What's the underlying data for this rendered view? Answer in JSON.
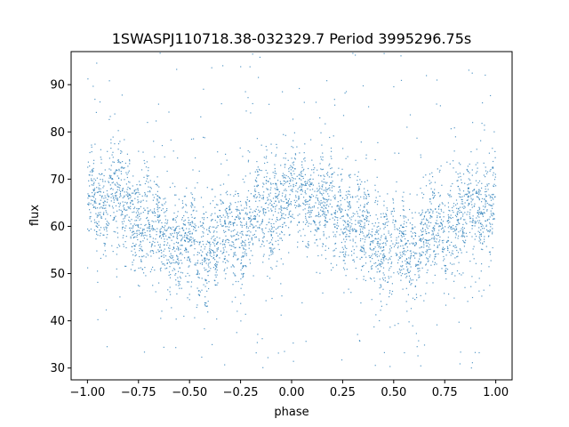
{
  "chart_data": {
    "type": "scatter",
    "title": "1SWASPJ110718.38-032329.7 Period 3995296.75s",
    "xlabel": "phase",
    "ylabel": "flux",
    "xlim": [
      -1.08,
      1.08
    ],
    "ylim": [
      27.5,
      97.0
    ],
    "xticks": [
      -1.0,
      -0.75,
      -0.5,
      -0.25,
      0.0,
      0.25,
      0.5,
      0.75,
      1.0
    ],
    "xtick_labels": [
      "−1.00",
      "−0.75",
      "−0.50",
      "−0.25",
      "0.00",
      "0.25",
      "0.50",
      "0.75",
      "1.00"
    ],
    "yticks": [
      30,
      40,
      50,
      60,
      70,
      80,
      90
    ],
    "ytick_labels": [
      "30",
      "40",
      "50",
      "60",
      "70",
      "80",
      "90"
    ],
    "grid": false,
    "legend": "none",
    "marker_color": "#1f77b4",
    "series_profile": {
      "phase": [
        -1.0,
        -0.9,
        -0.75,
        -0.6,
        -0.5,
        -0.4,
        -0.25,
        -0.1,
        0.0,
        0.1,
        0.25,
        0.4,
        0.5,
        0.6,
        0.75,
        0.9,
        1.0
      ],
      "flux": [
        65,
        67,
        62,
        58,
        55,
        56,
        60,
        64,
        67,
        66,
        62,
        58,
        55,
        56,
        60,
        64,
        66
      ]
    },
    "flux_range": [
      30,
      97
    ]
  }
}
